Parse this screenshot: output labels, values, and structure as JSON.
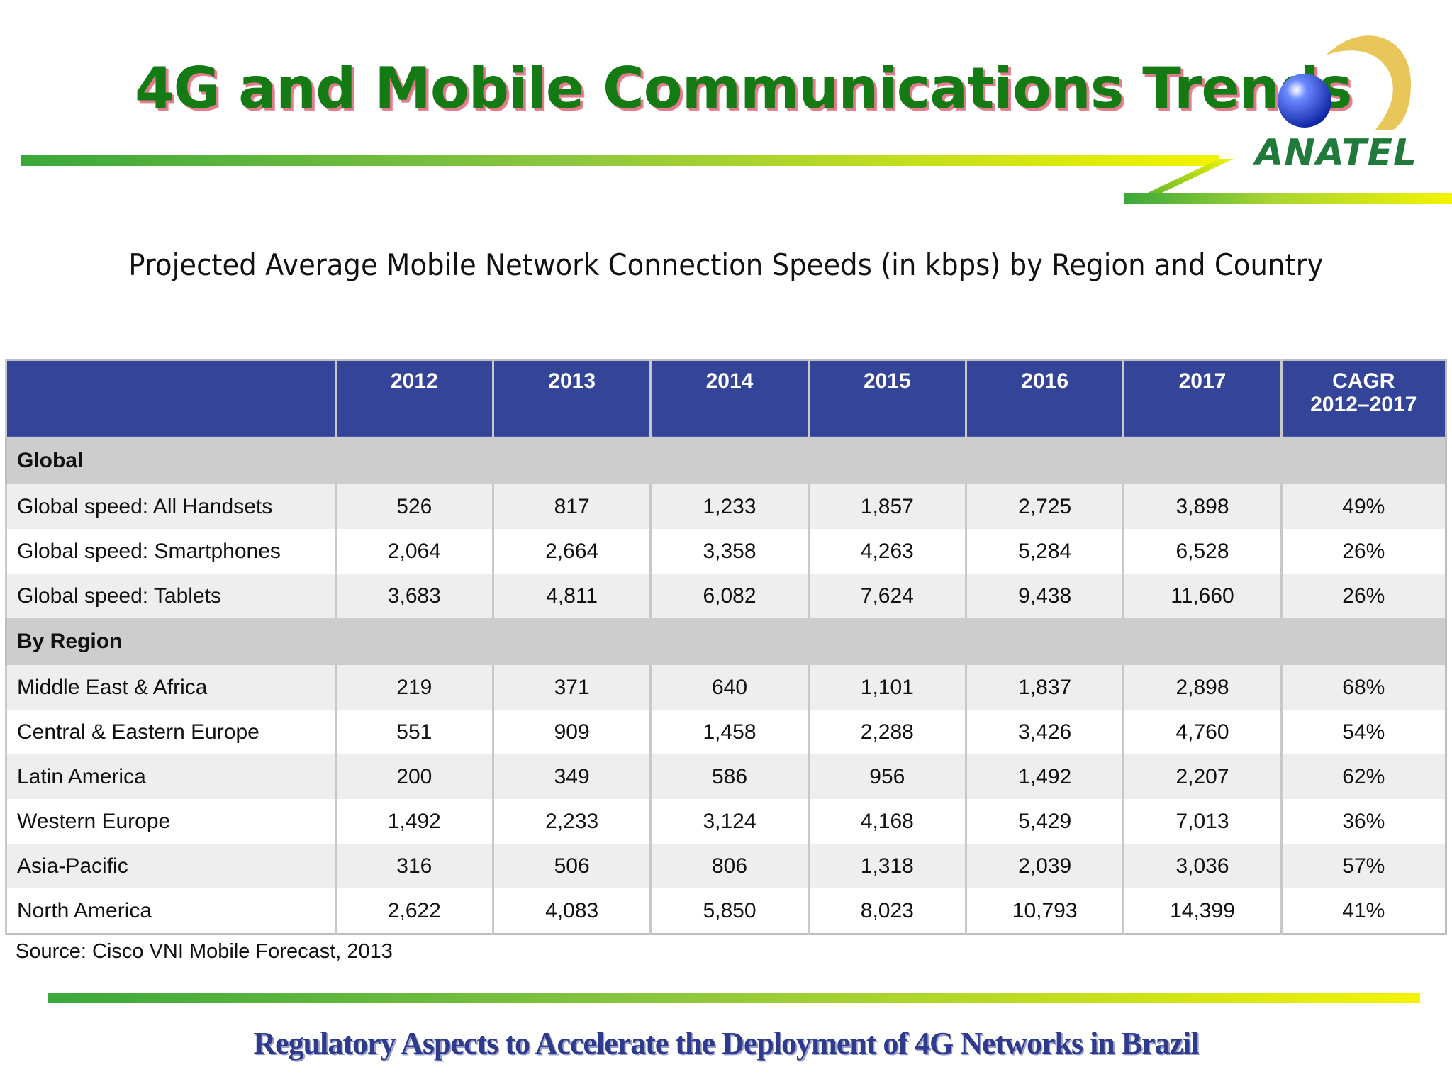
{
  "header": {
    "title": "4G and Mobile Communications Trends",
    "logo_text": "ANATEL"
  },
  "subtitle": "Projected Average Mobile Network Connection Speeds (in kbps) by Region and Country",
  "table": {
    "columns": [
      "",
      "2012",
      "2013",
      "2014",
      "2015",
      "2016",
      "2017"
    ],
    "cagr_header": [
      "CAGR",
      "2012–2017"
    ],
    "sections": [
      {
        "name": "Global",
        "rows": [
          {
            "label": "Global speed: All Handsets",
            "values": [
              "526",
              "817",
              "1,233",
              "1,857",
              "2,725",
              "3,898",
              "49%"
            ]
          },
          {
            "label": "Global speed: Smartphones",
            "values": [
              "2,064",
              "2,664",
              "3,358",
              "4,263",
              "5,284",
              "6,528",
              "26%"
            ]
          },
          {
            "label": "Global speed: Tablets",
            "values": [
              "3,683",
              "4,811",
              "6,082",
              "7,624",
              "9,438",
              "11,660",
              "26%"
            ]
          }
        ]
      },
      {
        "name": "By Region",
        "rows": [
          {
            "label": "Middle East & Africa",
            "values": [
              "219",
              "371",
              "640",
              "1,101",
              "1,837",
              "2,898",
              "68%"
            ]
          },
          {
            "label": "Central & Eastern Europe",
            "values": [
              "551",
              "909",
              "1,458",
              "2,288",
              "3,426",
              "4,760",
              "54%"
            ]
          },
          {
            "label": "Latin America",
            "values": [
              "200",
              "349",
              "586",
              "956",
              "1,492",
              "2,207",
              "62%"
            ]
          },
          {
            "label": "Western Europe",
            "values": [
              "1,492",
              "2,233",
              "3,124",
              "4,168",
              "5,429",
              "7,013",
              "36%"
            ]
          },
          {
            "label": "Asia-Pacific",
            "values": [
              "316",
              "506",
              "806",
              "1,318",
              "2,039",
              "3,036",
              "57%"
            ]
          },
          {
            "label": "North America",
            "values": [
              "2,622",
              "4,083",
              "5,850",
              "8,023",
              "10,793",
              "14,399",
              "41%"
            ]
          }
        ]
      }
    ]
  },
  "source": "Source: Cisco VNI Mobile Forecast, 2013",
  "footer": "Regulatory Aspects to Accelerate the Deployment of 4G Networks in Brazil",
  "colors": {
    "title_green": "#147a14",
    "header_blue": "#334499",
    "section_gray": "#cdcdcd",
    "footer_blue": "#2e3a8c",
    "logo_gold": "#e8c65a",
    "logo_globe": "#1f3fbf"
  }
}
